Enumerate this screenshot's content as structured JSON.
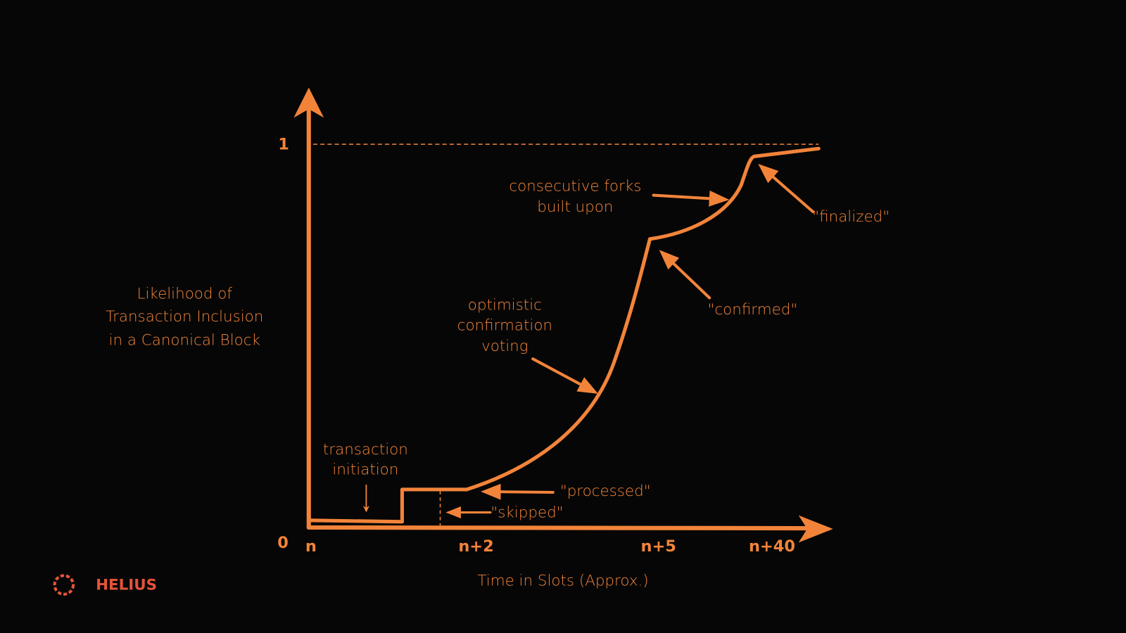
{
  "axes": {
    "y_title": [
      "Likelihood of",
      "Transaction Inclusion",
      "in a Canonical Block"
    ],
    "y_ticks": [
      "0",
      "1"
    ],
    "x_ticks": [
      "n",
      "n+2",
      "n+5",
      "n+40"
    ],
    "x_title": "Time in Slots (Approx.)"
  },
  "annotations": {
    "transaction_initiation": [
      "transaction",
      "initiation"
    ],
    "skipped": "\"skipped\"",
    "processed": "\"processed\"",
    "optimistic_confirmation_voting": [
      "optimistic",
      "confirmation",
      "voting"
    ],
    "confirmed": "\"confirmed\"",
    "consecutive_forks": [
      "consecutive forks",
      "built upon"
    ],
    "finalized": "\"finalized\""
  },
  "logo": "HELIUS"
}
